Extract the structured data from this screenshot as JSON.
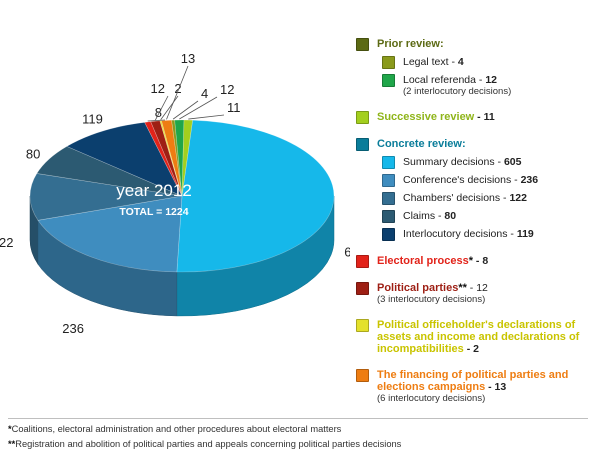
{
  "chart_data": {
    "type": "pie",
    "center_text": "year 2012",
    "total_text": "TOTAL = 1224",
    "slices": [
      {
        "label": "Summary decisions",
        "value": 605,
        "color": "#16b8ea"
      },
      {
        "label": "Conference's decisions",
        "value": 236,
        "color": "#3f8dbf"
      },
      {
        "label": "Chambers' decisions",
        "value": 122,
        "color": "#346e91"
      },
      {
        "label": "Claims",
        "value": 80,
        "color": "#2c5a72"
      },
      {
        "label": "Interlocutory decisions",
        "value": 119,
        "color": "#0b3f6e"
      },
      {
        "label": "Electoral process",
        "value": 8,
        "color": "#e2231a"
      },
      {
        "label": "Political parties",
        "value": 12,
        "color": "#9e1f14"
      },
      {
        "label": "Political officeholder's declarations",
        "value": 2,
        "color": "#e4e12b"
      },
      {
        "label": "The financing of political parties and elections campaigns",
        "value": 13,
        "color": "#ee7d12"
      },
      {
        "label": "Legal text",
        "value": 4,
        "color": "#8a9a1c"
      },
      {
        "label": "Local referenda",
        "value": 12,
        "color": "#20a64a"
      },
      {
        "label": "Successive review",
        "value": 11,
        "color": "#a3cf1e"
      }
    ]
  },
  "legend": {
    "prior": {
      "title": "Prior review:",
      "color": "#5c6a14"
    },
    "legal": {
      "label": "Legal text - ",
      "value": "4"
    },
    "local": {
      "label": "Local referenda - ",
      "value": "12",
      "note": "(2 interlocutory decisions)"
    },
    "successive": {
      "title": "Successive review",
      "value": " - 11"
    },
    "concrete": {
      "title": "Concrete review:",
      "color": "#0a7d9a"
    },
    "summary": {
      "label": "Summary decisions - ",
      "value": "605"
    },
    "conference": {
      "label": "Conference's decisions - ",
      "value": "236"
    },
    "chambers": {
      "label": "Chambers' decisions - ",
      "value": "122"
    },
    "claims": {
      "label": "Claims - ",
      "value": "80"
    },
    "interloc": {
      "label": "Interlocutory decisions - ",
      "value": "119"
    },
    "electoral": {
      "title": "Electoral process",
      "mark": "*",
      "value": " - 8",
      "color": "#e2231a"
    },
    "parties": {
      "title": "Political parties",
      "mark": "**",
      "value": " - 12",
      "note": "(3 interlocutory decisions)",
      "color": "#9e1f14"
    },
    "officeholder": {
      "title": "Political officeholder's declarations of assets and income and declarations of incompatibilities",
      "value": " - 2",
      "color": "#c9c400"
    },
    "financing": {
      "title": "The financing of political parties and elections campaigns",
      "value": " - 13",
      "note": "(6 interlocutory decisions)",
      "color": "#ee7d12"
    }
  },
  "footnotes": {
    "f1_mark": "*",
    "f1": "Coalitions, electoral administration and other procedures about electoral matters",
    "f2_mark": "**",
    "f2": "Registration and abolition of political parties and appeals concerning political parties decisions"
  }
}
